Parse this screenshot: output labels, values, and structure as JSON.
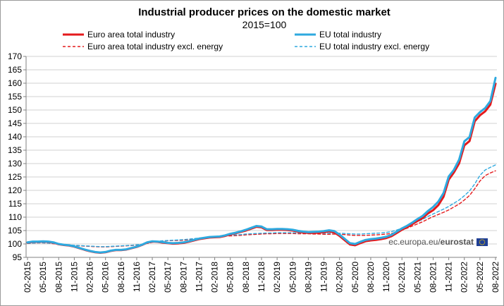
{
  "colors": {
    "euro_area": "#e41a1c",
    "eu": "#2ea9df",
    "grid": "#d0d0d0",
    "axis": "#808080",
    "flag_blue": "#1f3f94",
    "flag_star": "#ffd200"
  },
  "source": {
    "prefix": "ec.europa.eu/",
    "brand": "eurostat",
    "flag_icon": "eu-flag-icon"
  },
  "chart_data": {
    "type": "line",
    "title": "Industrial producer prices on the domestic market",
    "subtitle": "2015=100",
    "xlabel": "",
    "ylabel": "",
    "ylim": [
      95,
      170
    ],
    "yticks": [
      95,
      100,
      105,
      110,
      115,
      120,
      125,
      130,
      135,
      140,
      145,
      150,
      155,
      160,
      165,
      170
    ],
    "grid": true,
    "legend_position": "top",
    "months": [
      "02-2015",
      "03-2015",
      "04-2015",
      "05-2015",
      "06-2015",
      "07-2015",
      "08-2015",
      "09-2015",
      "10-2015",
      "11-2015",
      "12-2015",
      "01-2016",
      "02-2016",
      "03-2016",
      "04-2016",
      "05-2016",
      "06-2016",
      "07-2016",
      "08-2016",
      "09-2016",
      "10-2016",
      "11-2016",
      "12-2016",
      "01-2017",
      "02-2017",
      "03-2017",
      "04-2017",
      "05-2017",
      "06-2017",
      "07-2017",
      "08-2017",
      "09-2017",
      "10-2017",
      "11-2017",
      "12-2017",
      "01-2018",
      "02-2018",
      "03-2018",
      "04-2018",
      "05-2018",
      "06-2018",
      "07-2018",
      "08-2018",
      "09-2018",
      "10-2018",
      "11-2018",
      "12-2018",
      "01-2019",
      "02-2019",
      "03-2019",
      "04-2019",
      "05-2019",
      "06-2019",
      "07-2019",
      "08-2019",
      "09-2019",
      "10-2019",
      "11-2019",
      "12-2019",
      "01-2020",
      "02-2020",
      "03-2020",
      "04-2020",
      "05-2020",
      "06-2020",
      "07-2020",
      "08-2020",
      "09-2020",
      "10-2020",
      "11-2020",
      "12-2020",
      "01-2021",
      "02-2021",
      "03-2021",
      "04-2021",
      "05-2021",
      "06-2021",
      "07-2021",
      "08-2021",
      "09-2021",
      "10-2021",
      "11-2021",
      "12-2021",
      "01-2022",
      "02-2022",
      "03-2022",
      "04-2022",
      "05-2022",
      "06-2022",
      "07-2022",
      "08-2022"
    ],
    "tick_labels": [
      "02-2015",
      "05-2015",
      "08-2015",
      "11-2015",
      "02-2016",
      "05-2016",
      "08-2016",
      "11-2016",
      "02-2017",
      "05-2017",
      "08-2017",
      "11-2017",
      "02-2018",
      "05-2018",
      "08-2018",
      "11-2018",
      "02-2019",
      "05-2019",
      "08-2019",
      "11-2019",
      "02-2020",
      "05-2020",
      "08-2020",
      "11-2020",
      "02-2021",
      "05-2021",
      "08-2021",
      "11-2021",
      "02-2022",
      "05-2022",
      "08-2022"
    ],
    "series": [
      {
        "name": "Euro area total industry",
        "color": "#e41a1c",
        "style": "solid",
        "values": [
          100.5,
          100.8,
          100.8,
          100.9,
          100.8,
          100.5,
          99.9,
          99.6,
          99.4,
          99.0,
          98.4,
          97.8,
          97.3,
          96.9,
          96.7,
          96.9,
          97.4,
          97.7,
          97.7,
          97.9,
          98.4,
          98.9,
          99.6,
          100.5,
          100.9,
          100.8,
          100.5,
          100.3,
          100.1,
          100.2,
          100.4,
          100.8,
          101.3,
          101.8,
          102.1,
          102.4,
          102.5,
          102.6,
          103.0,
          103.6,
          104.0,
          104.5,
          105.0,
          105.7,
          106.4,
          106.2,
          105.2,
          105.2,
          105.3,
          105.3,
          105.2,
          105.0,
          104.6,
          104.3,
          104.1,
          104.1,
          104.2,
          104.4,
          104.7,
          104.3,
          103.0,
          101.4,
          99.8,
          99.5,
          100.3,
          101.0,
          101.3,
          101.5,
          101.8,
          102.2,
          102.9,
          104.1,
          105.3,
          106.3,
          107.4,
          108.6,
          109.7,
          111.4,
          112.6,
          114.5,
          117.6,
          124.0,
          126.7,
          130.1,
          136.8,
          138.4,
          145.8,
          148.0,
          149.5,
          152.0,
          159.8
        ]
      },
      {
        "name": "EU total industry",
        "color": "#2ea9df",
        "style": "solid",
        "values": [
          100.6,
          100.9,
          100.9,
          101.0,
          100.9,
          100.6,
          100.0,
          99.7,
          99.5,
          99.1,
          98.5,
          97.9,
          97.4,
          97.0,
          96.8,
          97.0,
          97.5,
          97.8,
          97.8,
          98.0,
          98.5,
          99.0,
          99.7,
          100.6,
          101.0,
          100.9,
          100.7,
          100.4,
          100.3,
          100.4,
          100.6,
          101.0,
          101.5,
          102.0,
          102.3,
          102.6,
          102.7,
          102.8,
          103.2,
          103.8,
          104.2,
          104.7,
          105.3,
          106.0,
          106.7,
          106.5,
          105.5,
          105.5,
          105.6,
          105.6,
          105.5,
          105.3,
          104.9,
          104.6,
          104.4,
          104.5,
          104.6,
          104.8,
          105.1,
          104.8,
          103.5,
          101.9,
          100.3,
          100.0,
          100.8,
          101.5,
          101.8,
          102.0,
          102.3,
          102.7,
          103.4,
          104.6,
          105.8,
          106.8,
          108.0,
          109.3,
          110.5,
          112.3,
          113.8,
          115.8,
          119.0,
          125.2,
          127.7,
          131.5,
          138.3,
          139.9,
          147.2,
          149.2,
          150.7,
          153.3,
          162.0
        ]
      },
      {
        "name": "Euro area total industry excl. energy",
        "color": "#e41a1c",
        "style": "dashed",
        "values": [
          100.2,
          100.3,
          100.4,
          100.4,
          100.3,
          100.1,
          99.9,
          99.7,
          99.5,
          99.4,
          99.3,
          99.2,
          99.1,
          99.0,
          98.9,
          98.9,
          99.0,
          99.1,
          99.2,
          99.3,
          99.4,
          99.6,
          99.8,
          100.2,
          100.6,
          100.9,
          101.1,
          101.2,
          101.3,
          101.3,
          101.4,
          101.6,
          101.8,
          102.0,
          102.2,
          102.4,
          102.6,
          102.8,
          102.9,
          103.0,
          103.1,
          103.2,
          103.4,
          103.5,
          103.6,
          103.7,
          103.8,
          103.8,
          103.9,
          103.9,
          103.9,
          103.9,
          103.8,
          103.8,
          103.8,
          103.7,
          103.7,
          103.6,
          103.6,
          103.7,
          103.6,
          103.5,
          103.3,
          103.2,
          103.2,
          103.2,
          103.3,
          103.4,
          103.5,
          103.7,
          103.9,
          104.5,
          105.2,
          105.9,
          106.7,
          107.5,
          108.3,
          109.3,
          110.2,
          111.0,
          111.8,
          112.7,
          113.8,
          114.9,
          116.4,
          118.1,
          120.6,
          123.5,
          125.5,
          126.5,
          127.3
        ]
      },
      {
        "name": "EU total industry excl. energy",
        "color": "#2ea9df",
        "style": "dashed",
        "values": [
          100.2,
          100.3,
          100.4,
          100.4,
          100.3,
          100.2,
          100.0,
          99.8,
          99.6,
          99.5,
          99.4,
          99.3,
          99.2,
          99.1,
          99.0,
          99.0,
          99.1,
          99.2,
          99.3,
          99.4,
          99.5,
          99.7,
          99.9,
          100.3,
          100.7,
          101.0,
          101.2,
          101.3,
          101.4,
          101.5,
          101.6,
          101.8,
          102.0,
          102.2,
          102.4,
          102.6,
          102.8,
          103.0,
          103.2,
          103.3,
          103.4,
          103.5,
          103.7,
          103.8,
          103.9,
          104.0,
          104.1,
          104.1,
          104.2,
          104.2,
          104.2,
          104.2,
          104.1,
          104.1,
          104.1,
          104.1,
          104.1,
          104.0,
          104.0,
          104.1,
          104.0,
          103.9,
          103.8,
          103.7,
          103.7,
          103.8,
          103.9,
          104.0,
          104.1,
          104.3,
          104.6,
          105.2,
          105.9,
          106.6,
          107.4,
          108.3,
          109.2,
          110.3,
          111.2,
          112.1,
          113.0,
          114.0,
          115.2,
          116.4,
          118.0,
          119.8,
          122.4,
          125.6,
          127.6,
          128.6,
          129.5
        ]
      }
    ]
  }
}
